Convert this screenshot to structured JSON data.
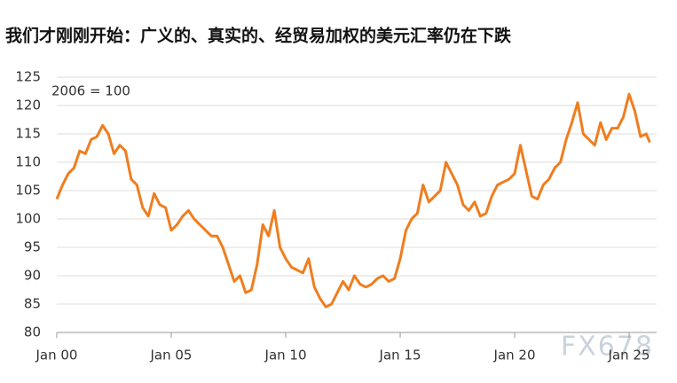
{
  "chart_data": {
    "type": "line",
    "title": "我们才刚刚开始：广义的、真实的、经贸易加权的美元汇率仍在下跌",
    "annotation": "2006 = 100",
    "watermark": "FX678",
    "x": [
      2000.0,
      2000.25,
      2000.5,
      2000.75,
      2001.0,
      2001.25,
      2001.5,
      2001.75,
      2002.0,
      2002.25,
      2002.5,
      2002.75,
      2003.0,
      2003.25,
      2003.5,
      2003.75,
      2004.0,
      2004.25,
      2004.5,
      2004.75,
      2005.0,
      2005.25,
      2005.5,
      2005.75,
      2006.0,
      2006.25,
      2006.5,
      2006.75,
      2007.0,
      2007.25,
      2007.5,
      2007.75,
      2008.0,
      2008.25,
      2008.5,
      2008.75,
      2009.0,
      2009.25,
      2009.5,
      2009.75,
      2010.0,
      2010.25,
      2010.5,
      2010.75,
      2011.0,
      2011.25,
      2011.5,
      2011.75,
      2012.0,
      2012.25,
      2012.5,
      2012.75,
      2013.0,
      2013.25,
      2013.5,
      2013.75,
      2014.0,
      2014.25,
      2014.5,
      2014.75,
      2015.0,
      2015.25,
      2015.5,
      2015.75,
      2016.0,
      2016.25,
      2016.5,
      2016.75,
      2017.0,
      2017.25,
      2017.5,
      2017.75,
      2018.0,
      2018.25,
      2018.5,
      2018.75,
      2019.0,
      2019.25,
      2019.5,
      2019.75,
      2020.0,
      2020.25,
      2020.5,
      2020.75,
      2021.0,
      2021.25,
      2021.5,
      2021.75,
      2022.0,
      2022.25,
      2022.5,
      2022.75,
      2023.0,
      2023.25,
      2023.5,
      2023.75,
      2024.0,
      2024.25,
      2024.5,
      2024.75,
      2025.0,
      2025.25,
      2025.5,
      2025.75,
      2025.9
    ],
    "series": [
      {
        "color": "#f07d1e",
        "values": [
          103.5,
          106,
          108,
          109,
          112,
          111.5,
          114,
          114.5,
          116.5,
          115,
          111.5,
          113,
          112,
          107,
          106,
          102,
          100.5,
          104.5,
          102.5,
          102,
          98,
          99,
          100.5,
          101.5,
          100,
          99,
          98,
          97,
          97,
          95,
          92,
          89,
          90,
          87,
          87.5,
          92,
          99,
          97,
          101.5,
          95,
          93,
          91.5,
          91,
          90.5,
          93,
          88,
          86,
          84.5,
          85,
          87,
          89,
          87.5,
          90,
          88.5,
          88,
          88.5,
          89.5,
          90,
          89,
          89.5,
          93,
          98,
          100,
          101,
          106,
          103,
          104,
          105,
          110,
          108,
          106,
          102.5,
          101.5,
          103,
          100.5,
          101,
          104,
          106,
          106.5,
          107,
          108,
          113,
          108.5,
          104,
          103.5,
          106,
          107,
          109,
          110,
          114,
          117,
          120.5,
          115,
          114,
          113,
          117,
          114,
          116,
          116,
          118,
          122,
          119,
          114.5,
          115,
          113.5
        ]
      }
    ],
    "xlim": [
      2000,
      2026.2
    ],
    "xticks": [
      {
        "value": 2000,
        "label": "Jan 00"
      },
      {
        "value": 2005,
        "label": "Jan 05"
      },
      {
        "value": 2010,
        "label": "Jan 10"
      },
      {
        "value": 2015,
        "label": "Jan 15"
      },
      {
        "value": 2020,
        "label": "Jan 20"
      },
      {
        "value": 2025,
        "label": "Jan 25"
      }
    ],
    "ylim": [
      80,
      125
    ],
    "yticks": [
      80,
      85,
      90,
      95,
      100,
      105,
      110,
      115,
      120,
      125
    ],
    "grid": true
  }
}
